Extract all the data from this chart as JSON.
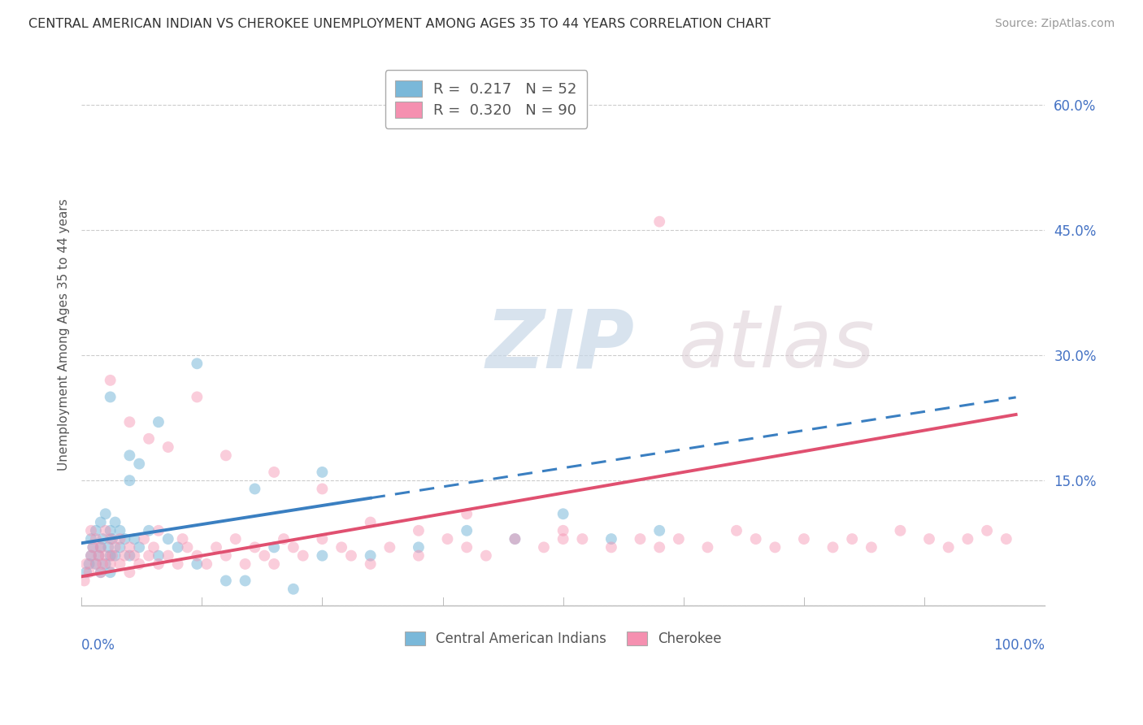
{
  "title": "CENTRAL AMERICAN INDIAN VS CHEROKEE UNEMPLOYMENT AMONG AGES 35 TO 44 YEARS CORRELATION CHART",
  "source": "Source: ZipAtlas.com",
  "ylabel": "Unemployment Among Ages 35 to 44 years",
  "xlim": [
    0,
    100
  ],
  "ylim": [
    0,
    65
  ],
  "yticks": [
    0,
    15,
    30,
    45,
    60
  ],
  "ytick_labels": [
    "",
    "15.0%",
    "30.0%",
    "45.0%",
    "60.0%"
  ],
  "blue_R": 0.217,
  "blue_N": 52,
  "pink_R": 0.32,
  "pink_N": 90,
  "blue_color": "#7ab8d9",
  "pink_color": "#f590b0",
  "blue_line_color": "#3a7fc1",
  "pink_line_color": "#e05070",
  "blue_label": "Central American Indians",
  "pink_label": "Cherokee",
  "watermark_zip": "ZIP",
  "watermark_atlas": "atlas",
  "bg": "#ffffff",
  "grid_color": "#cccccc",
  "blue_x": [
    0.5,
    0.8,
    1.0,
    1.0,
    1.2,
    1.5,
    1.5,
    1.8,
    2.0,
    2.0,
    2.0,
    2.2,
    2.5,
    2.5,
    2.8,
    3.0,
    3.0,
    3.0,
    3.2,
    3.5,
    3.5,
    4.0,
    4.0,
    4.5,
    5.0,
    5.0,
    5.5,
    6.0,
    6.0,
    7.0,
    8.0,
    9.0,
    10.0,
    12.0,
    15.0,
    17.0,
    20.0,
    22.0,
    25.0,
    30.0,
    35.0,
    40.0,
    45.0,
    50.0,
    55.0,
    60.0,
    3.0,
    5.0,
    8.0,
    12.0,
    18.0,
    25.0
  ],
  "blue_y": [
    4.0,
    5.0,
    6.0,
    8.0,
    7.0,
    5.0,
    9.0,
    6.0,
    4.0,
    7.0,
    10.0,
    8.0,
    5.0,
    11.0,
    7.0,
    4.0,
    6.0,
    9.0,
    8.0,
    6.0,
    10.0,
    7.0,
    9.0,
    8.0,
    6.0,
    15.0,
    8.0,
    7.0,
    17.0,
    9.0,
    6.0,
    8.0,
    7.0,
    5.0,
    3.0,
    3.0,
    7.0,
    2.0,
    6.0,
    6.0,
    7.0,
    9.0,
    8.0,
    11.0,
    8.0,
    9.0,
    25.0,
    18.0,
    22.0,
    29.0,
    14.0,
    16.0
  ],
  "pink_x": [
    0.3,
    0.5,
    0.8,
    1.0,
    1.0,
    1.2,
    1.5,
    1.5,
    1.8,
    2.0,
    2.0,
    2.2,
    2.5,
    2.5,
    3.0,
    3.0,
    3.2,
    3.5,
    4.0,
    4.0,
    4.5,
    5.0,
    5.0,
    5.5,
    6.0,
    6.5,
    7.0,
    7.5,
    8.0,
    8.0,
    9.0,
    10.0,
    10.5,
    11.0,
    12.0,
    13.0,
    14.0,
    15.0,
    16.0,
    17.0,
    18.0,
    19.0,
    20.0,
    21.0,
    22.0,
    23.0,
    25.0,
    27.0,
    28.0,
    30.0,
    32.0,
    35.0,
    38.0,
    40.0,
    42.0,
    45.0,
    48.0,
    50.0,
    52.0,
    55.0,
    58.0,
    60.0,
    62.0,
    65.0,
    68.0,
    70.0,
    72.0,
    75.0,
    78.0,
    80.0,
    82.0,
    85.0,
    88.0,
    90.0,
    92.0,
    94.0,
    96.0,
    3.0,
    5.0,
    7.0,
    9.0,
    12.0,
    15.0,
    20.0,
    25.0,
    30.0,
    35.0,
    40.0,
    50.0,
    60.0
  ],
  "pink_y": [
    3.0,
    5.0,
    4.0,
    6.0,
    9.0,
    7.0,
    5.0,
    8.0,
    6.0,
    4.0,
    7.0,
    5.0,
    6.0,
    9.0,
    5.0,
    8.0,
    6.0,
    7.0,
    5.0,
    8.0,
    6.0,
    4.0,
    7.0,
    6.0,
    5.0,
    8.0,
    6.0,
    7.0,
    5.0,
    9.0,
    6.0,
    5.0,
    8.0,
    7.0,
    6.0,
    5.0,
    7.0,
    6.0,
    8.0,
    5.0,
    7.0,
    6.0,
    5.0,
    8.0,
    7.0,
    6.0,
    8.0,
    7.0,
    6.0,
    5.0,
    7.0,
    6.0,
    8.0,
    7.0,
    6.0,
    8.0,
    7.0,
    9.0,
    8.0,
    7.0,
    8.0,
    7.0,
    8.0,
    7.0,
    9.0,
    8.0,
    7.0,
    8.0,
    7.0,
    8.0,
    7.0,
    9.0,
    8.0,
    7.0,
    8.0,
    9.0,
    8.0,
    27.0,
    22.0,
    20.0,
    19.0,
    25.0,
    18.0,
    16.0,
    14.0,
    10.0,
    9.0,
    11.0,
    8.0,
    46.0
  ],
  "blue_solid_end": 30,
  "blue_dash_end": 97,
  "pink_line_end": 97,
  "blue_intercept": 7.5,
  "blue_slope": 0.18,
  "pink_intercept": 3.5,
  "pink_slope": 0.2
}
